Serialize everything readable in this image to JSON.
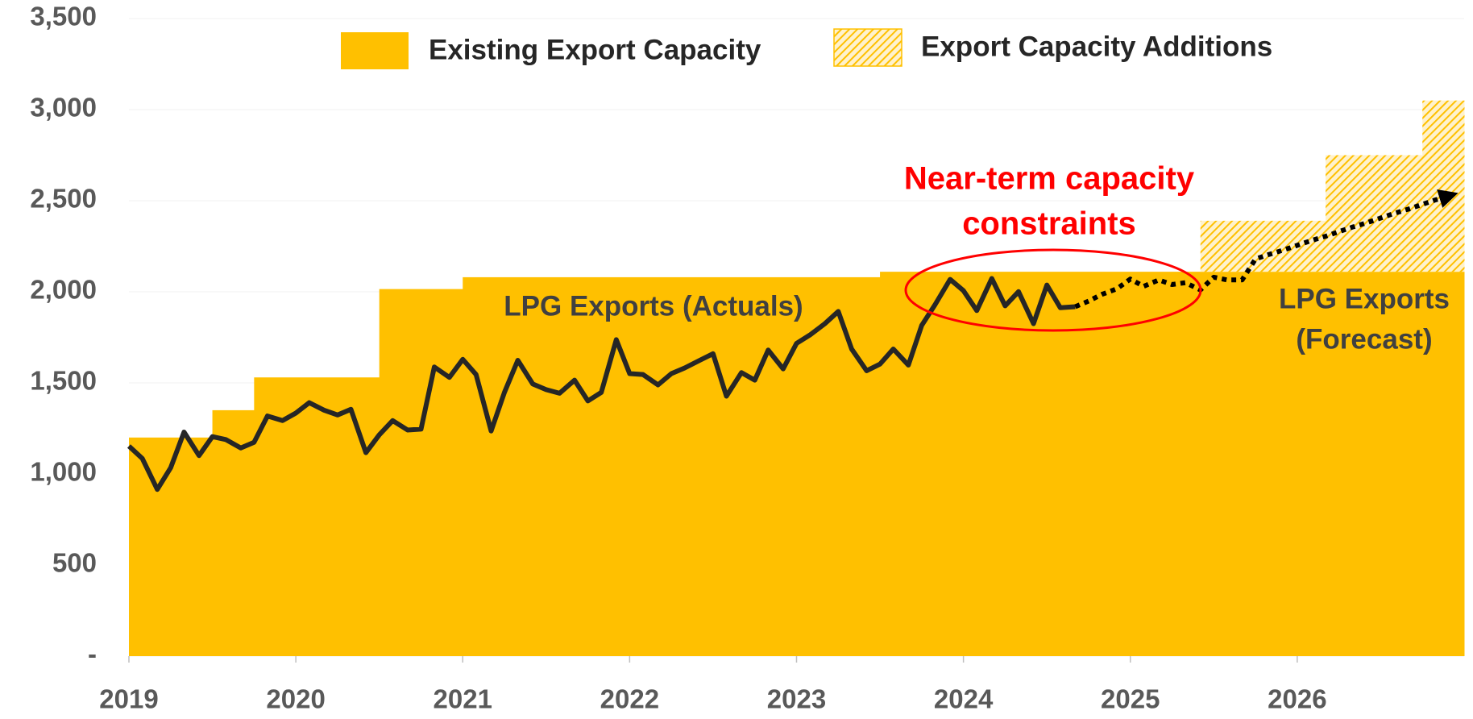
{
  "chart_data": {
    "type": "combo",
    "xlim": [
      2019,
      2027
    ],
    "xticks": [
      2019,
      2020,
      2021,
      2022,
      2023,
      2024,
      2025,
      2026
    ],
    "ylim": [
      0,
      3500
    ],
    "yticks": [
      {
        "value": 0,
        "label": "-"
      },
      {
        "value": 500,
        "label": "500"
      },
      {
        "value": 1000,
        "label": "1,000"
      },
      {
        "value": 1500,
        "label": "1,500"
      },
      {
        "value": 2000,
        "label": "2,000"
      },
      {
        "value": 2500,
        "label": "2,500"
      },
      {
        "value": 3000,
        "label": "3,000"
      },
      {
        "value": 3500,
        "label": "3,500"
      }
    ],
    "grid": true,
    "areas": [
      {
        "name": "Existing Export Capacity",
        "color": "#ffc000",
        "pattern": "solid",
        "x": [
          2019,
          2019.5,
          2019.75,
          2020.5,
          2021,
          2023.5
        ],
        "values": [
          1200,
          1350,
          1530,
          2015,
          2080,
          2110
        ]
      },
      {
        "name": "Export Capacity Additions",
        "color": "#ffc000",
        "pattern": "hatch",
        "stacked": true,
        "x": [
          2025.42,
          2026.17,
          2026.75
        ],
        "values": [
          280,
          640,
          940
        ]
      }
    ],
    "lines": [
      {
        "color": "#262626",
        "style": "solid",
        "x": [
          2019.0,
          2019.08,
          2019.17,
          2019.25,
          2019.33,
          2019.42,
          2019.5,
          2019.58,
          2019.67,
          2019.75,
          2019.83,
          2019.92,
          2020.0,
          2020.08,
          2020.17,
          2020.25,
          2020.33,
          2020.42,
          2020.5,
          2020.58,
          2020.67,
          2020.75,
          2020.83,
          2020.92,
          2021.0,
          2021.08,
          2021.17,
          2021.25,
          2021.33,
          2021.42,
          2021.5,
          2021.58,
          2021.67,
          2021.75,
          2021.83,
          2021.92,
          2022.0,
          2022.08,
          2022.17,
          2022.25,
          2022.33,
          2022.42,
          2022.5,
          2022.58,
          2022.67,
          2022.75,
          2022.83,
          2022.92,
          2023.0,
          2023.08,
          2023.17,
          2023.25,
          2023.33,
          2023.42,
          2023.5,
          2023.58,
          2023.67,
          2023.75,
          2023.83,
          2023.92,
          2024.0,
          2024.08,
          2024.17,
          2024.25,
          2024.33,
          2024.42,
          2024.5,
          2024.58,
          2024.67
        ],
        "values": [
          1153,
          1085,
          915,
          1034,
          1230,
          1101,
          1205,
          1189,
          1143,
          1174,
          1318,
          1293,
          1334,
          1391,
          1350,
          1324,
          1355,
          1117,
          1215,
          1293,
          1241,
          1246,
          1587,
          1530,
          1629,
          1546,
          1236,
          1448,
          1624,
          1494,
          1463,
          1443,
          1515,
          1401,
          1448,
          1737,
          1551,
          1546,
          1489,
          1551,
          1582,
          1624,
          1660,
          1427,
          1556,
          1515,
          1680,
          1577,
          1717,
          1763,
          1825,
          1892,
          1686,
          1567,
          1603,
          1686,
          1598,
          1815,
          1929,
          2068,
          2006,
          1897,
          2073,
          1923,
          2001,
          1825,
          2037,
          1913,
          1918
        ]
      },
      {
        "color": "#000000",
        "style": "dotted",
        "arrow": true,
        "x": [
          2024.67,
          2024.75,
          2024.83,
          2024.92,
          2025.0,
          2025.08,
          2025.17,
          2025.25,
          2025.33,
          2025.42,
          2025.5,
          2025.58,
          2025.67,
          2025.75,
          2025.83,
          2025.92,
          2026.0,
          2026.08,
          2026.17,
          2026.25,
          2026.33,
          2026.42,
          2026.5,
          2026.58,
          2026.67,
          2026.75,
          2026.83,
          2026.92
        ],
        "values": [
          1918,
          1949,
          1986,
          2017,
          2070,
          2030,
          2065,
          2040,
          2050,
          2010,
          2080,
          2065,
          2065,
          2180,
          2205,
          2230,
          2255,
          2280,
          2305,
          2330,
          2355,
          2380,
          2405,
          2430,
          2455,
          2480,
          2505,
          2530
        ]
      }
    ],
    "annotations": [
      "Near-term capacity",
      "constraints",
      "LPG Exports (Actuals)",
      "LPG Exports",
      "(Forecast)"
    ]
  }
}
